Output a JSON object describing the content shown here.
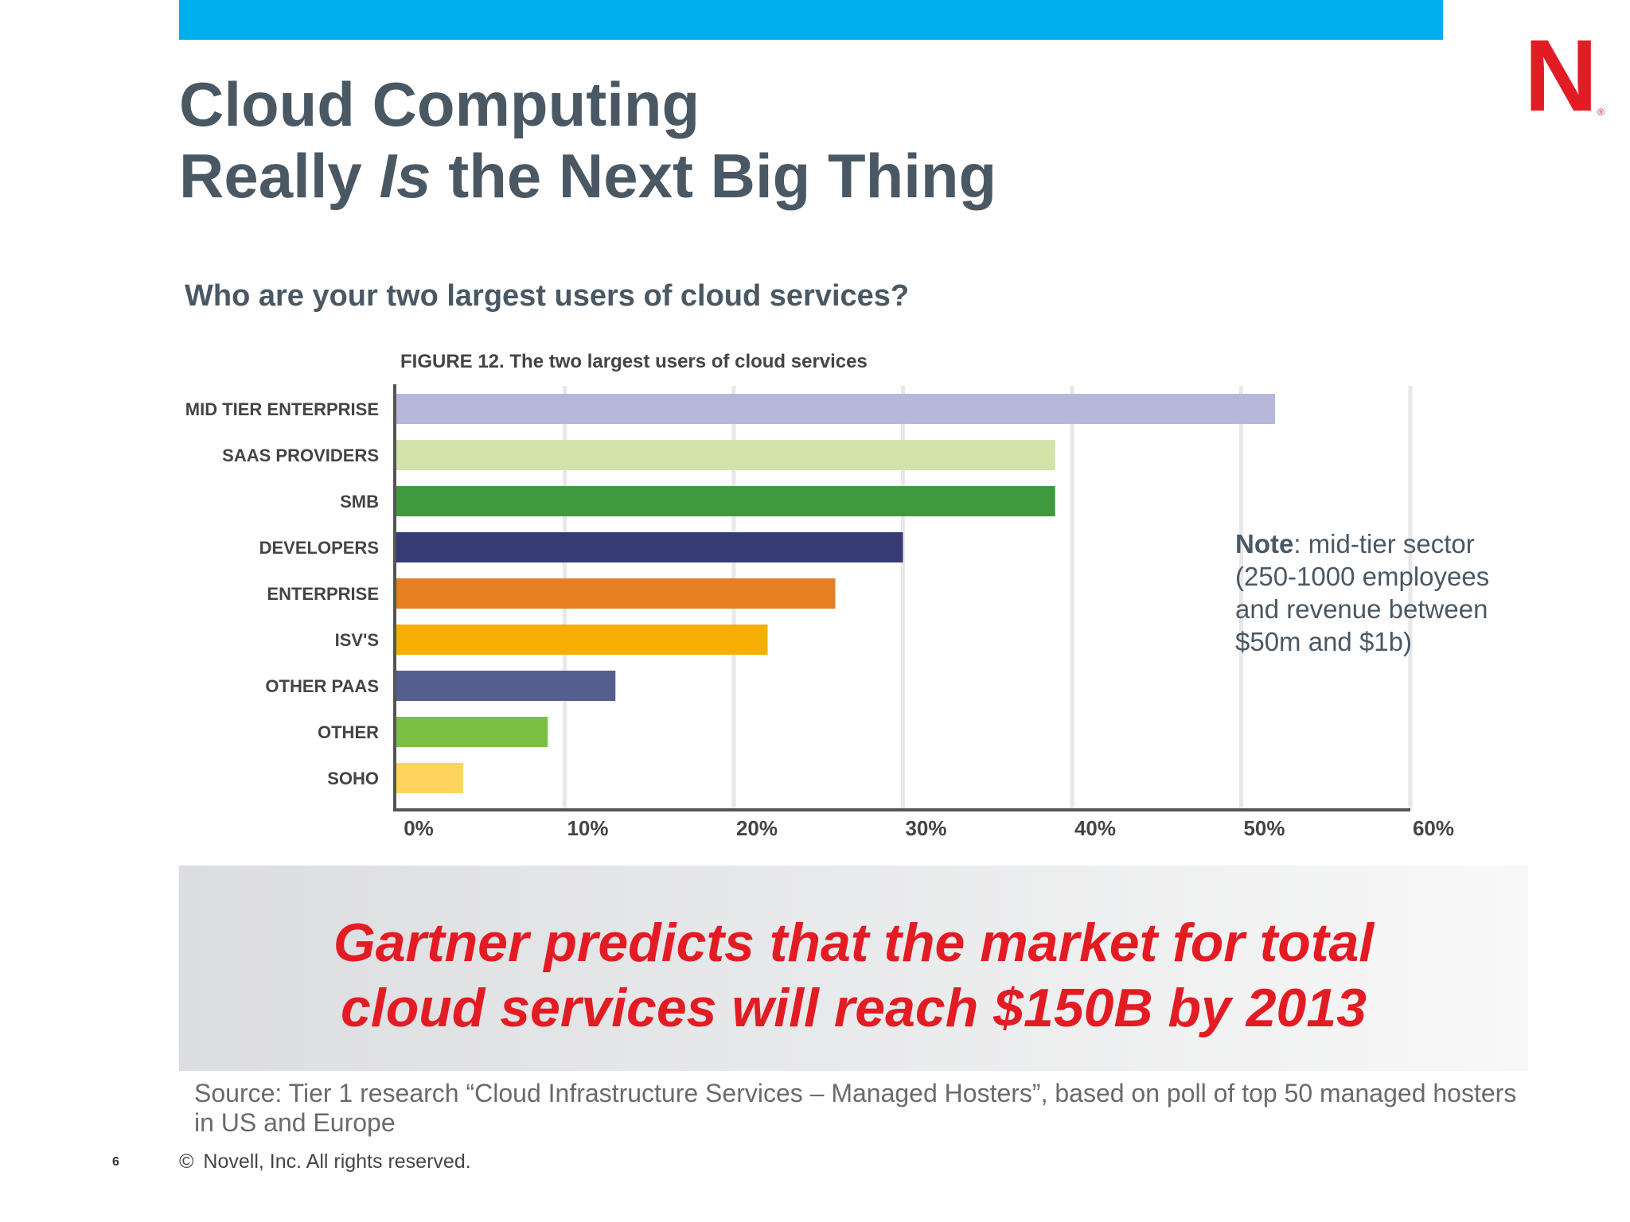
{
  "slide": {
    "title_line1": "Cloud Computing",
    "title_line2_pre": "Really ",
    "title_line2_em": "Is",
    "title_line2_post": " the Next Big Thing",
    "question": "Who are your two largest users of cloud services?",
    "logo_letter": "N",
    "logo_reg": "®",
    "note_bold": "Note",
    "note_text": ": mid-tier sector (250-1000 employees and revenue between $50m and $1b)",
    "banner_line1": "Gartner predicts that the market for total",
    "banner_line2": "cloud services will reach $150B by 2013",
    "source": "Source: Tier 1 research “Cloud Infrastructure Services – Managed Hosters”, based on poll of top 50 managed hosters in US and Europe",
    "page_number": "6",
    "copyright_mark": "©",
    "copyright_text": "Novell, Inc.  All rights reserved.",
    "accent_color": "#00aeef",
    "brand_color": "#e31b23"
  },
  "chart_data": {
    "type": "bar",
    "orientation": "horizontal",
    "title": "FIGURE 12. The two largest users of cloud services",
    "categories": [
      "MID TIER ENTERPRISE",
      "SAAS PROVIDERS",
      "SMB",
      "DEVELOPERS",
      "ENTERPRISE",
      "ISV'S",
      "OTHER PAAS",
      "OTHER",
      "SOHO"
    ],
    "values": [
      52,
      39,
      39,
      30,
      26,
      22,
      13,
      9,
      4
    ],
    "colors": [
      "#b7b8d9",
      "#d3e4ab",
      "#3f9a3b",
      "#373b74",
      "#e47f22",
      "#f5af02",
      "#555e8e",
      "#7bc043",
      "#fed55a"
    ],
    "xlim": [
      0,
      60
    ],
    "xticks": [
      "0%",
      "10%",
      "20%",
      "30%",
      "40%",
      "50%",
      "60%"
    ],
    "grid": true,
    "xlabel": "",
    "ylabel": ""
  }
}
